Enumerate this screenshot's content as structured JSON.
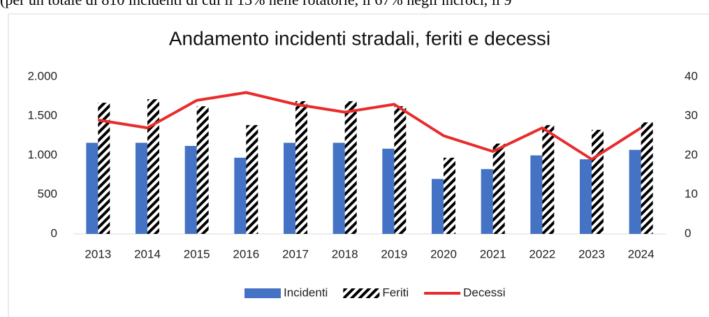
{
  "caption": "(per un totale di 810 incidenti di cui il 13% nelle rotatorie, il 67% negli incroci, il 9",
  "chart_data": {
    "type": "bar_line",
    "title": "Andamento incidenti stradali, feriti e decessi",
    "categories": [
      "2013",
      "2014",
      "2015",
      "2016",
      "2017",
      "2018",
      "2019",
      "2020",
      "2021",
      "2022",
      "2023",
      "2024"
    ],
    "series": [
      {
        "name": "Incidenti",
        "type": "bar",
        "color": "#4472c4",
        "values": [
          1160,
          1160,
          1120,
          970,
          1160,
          1160,
          1085,
          700,
          825,
          1000,
          950,
          1070
        ]
      },
      {
        "name": "Feriti",
        "type": "bar",
        "color": "#000000",
        "pattern": "hatch",
        "values": [
          1670,
          1715,
          1625,
          1385,
          1690,
          1690,
          1625,
          970,
          1150,
          1385,
          1325,
          1420
        ]
      },
      {
        "name": "Decessi",
        "type": "line",
        "axis": "y2",
        "color": "#e82c2c",
        "values": [
          29,
          27,
          34,
          36,
          33,
          31,
          33,
          25,
          21,
          27,
          19,
          27
        ]
      }
    ],
    "ylim": [
      0,
      2000
    ],
    "yticks": [
      0,
      500,
      {
        "value": 1000,
        "label": "1.000"
      },
      {
        "value": 1500,
        "label": "1.500"
      },
      {
        "value": 2000,
        "label": "2.000"
      }
    ],
    "y2lim": [
      0,
      40
    ],
    "y2ticks": [
      0,
      10,
      20,
      30,
      40
    ],
    "grid": false,
    "legend": "bottom"
  }
}
